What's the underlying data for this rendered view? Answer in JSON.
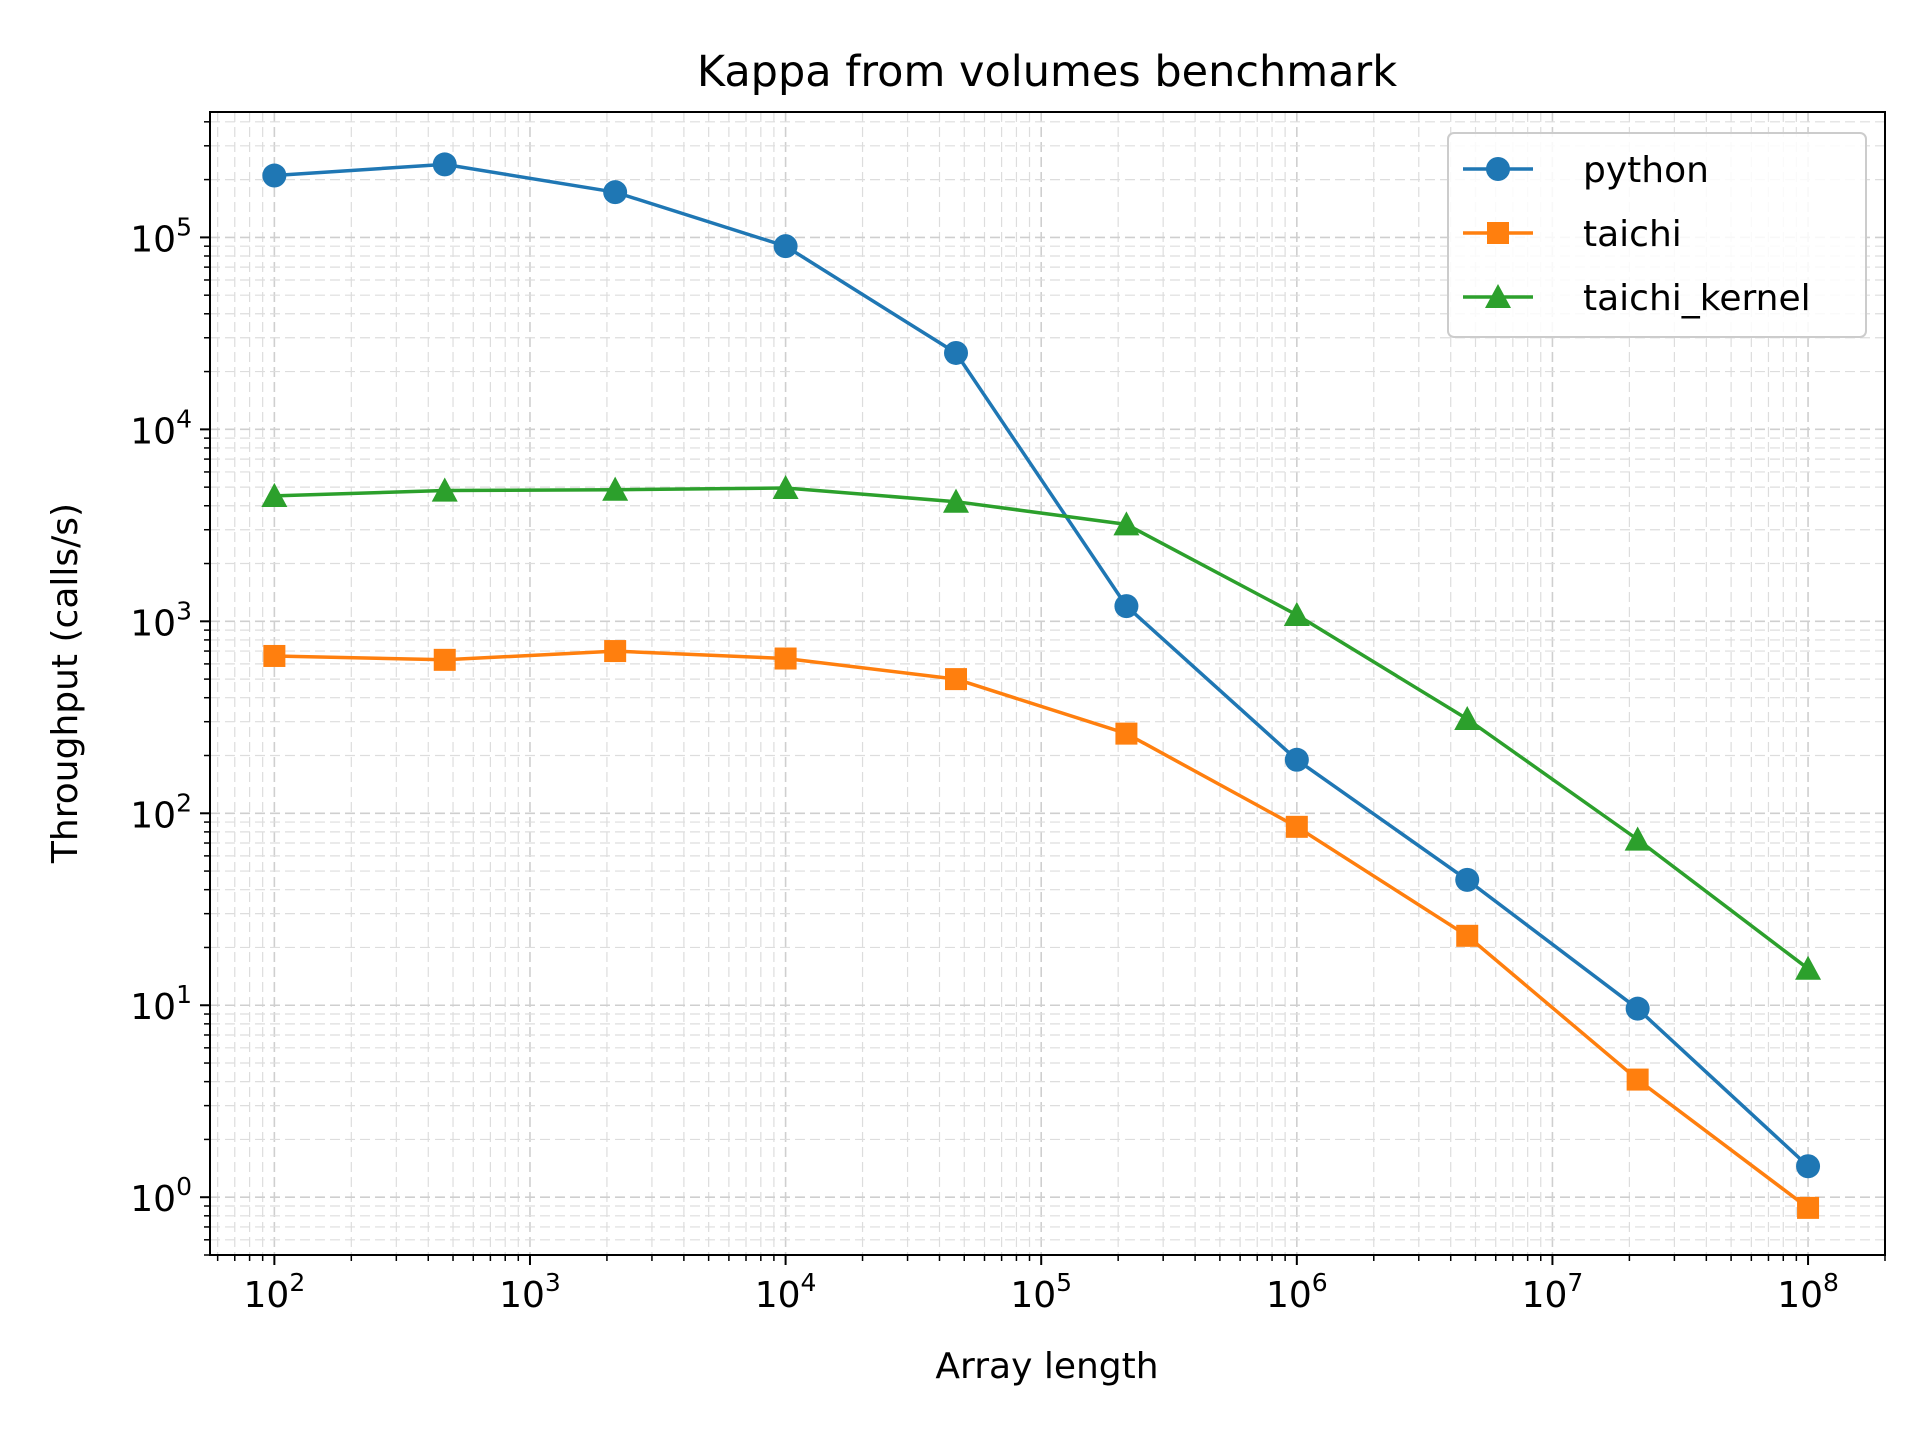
{
  "chart_data": {
    "type": "line",
    "title": "Kappa from volumes benchmark",
    "xlabel": "Array length",
    "ylabel": "Throughput (calls/s)",
    "xscale": "log",
    "yscale": "log",
    "xlim": [
      56,
      200000000
    ],
    "ylim": [
      0.5,
      450000
    ],
    "grid": true,
    "legend_position": "top-right",
    "x_ticks": [
      {
        "base": "10",
        "exp": "2"
      },
      {
        "base": "10",
        "exp": "3"
      },
      {
        "base": "10",
        "exp": "4"
      },
      {
        "base": "10",
        "exp": "5"
      },
      {
        "base": "10",
        "exp": "6"
      },
      {
        "base": "10",
        "exp": "7"
      },
      {
        "base": "10",
        "exp": "8"
      }
    ],
    "y_ticks": [
      {
        "base": "10",
        "exp": "0"
      },
      {
        "base": "10",
        "exp": "1"
      },
      {
        "base": "10",
        "exp": "2"
      },
      {
        "base": "10",
        "exp": "3"
      },
      {
        "base": "10",
        "exp": "4"
      },
      {
        "base": "10",
        "exp": "5"
      }
    ],
    "x": [
      100,
      464,
      2154,
      10000,
      46416,
      215443,
      1000000,
      4641589,
      21544347,
      100000000
    ],
    "series": [
      {
        "name": "python",
        "color": "#1f77b4",
        "marker": "circle",
        "values": [
          210000,
          240000,
          172000,
          90000,
          25000,
          1200,
          190,
          45,
          9.6,
          1.45
        ]
      },
      {
        "name": "taichi",
        "color": "#ff7f0e",
        "marker": "square",
        "values": [
          660,
          630,
          700,
          640,
          500,
          260,
          85,
          23,
          4.1,
          0.88
        ]
      },
      {
        "name": "taichi_kernel",
        "color": "#2ca02c",
        "marker": "triangle",
        "values": [
          4500,
          4800,
          4850,
          4950,
          4200,
          3200,
          1080,
          310,
          73,
          15.5
        ]
      }
    ]
  }
}
